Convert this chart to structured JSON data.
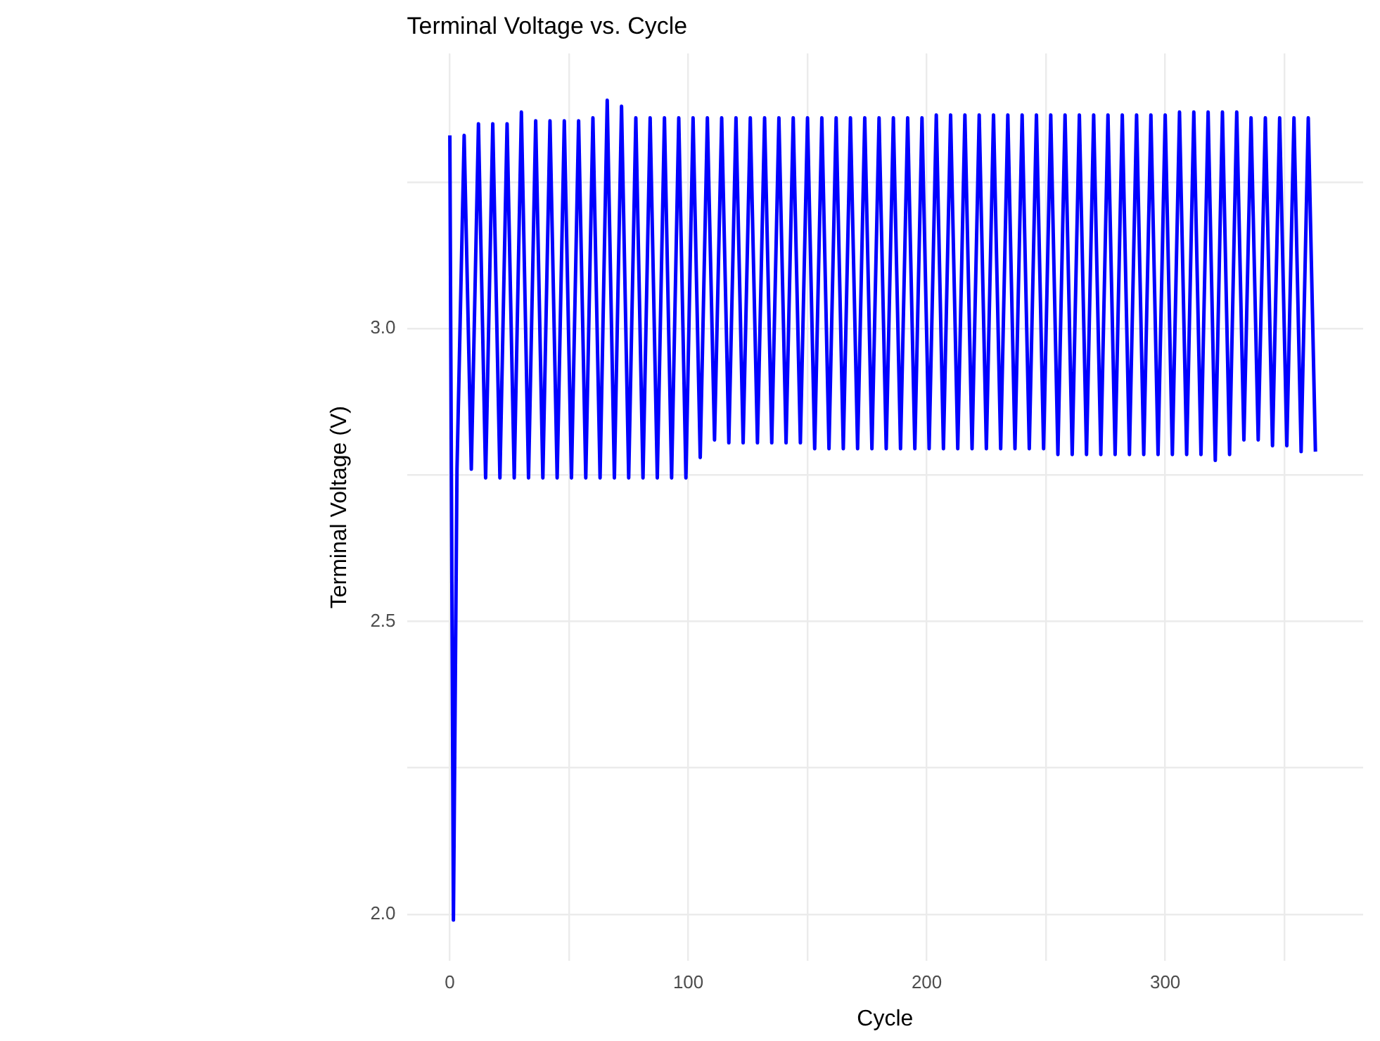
{
  "chart_data": {
    "type": "line",
    "title": "Terminal Voltage vs. Cycle",
    "xlabel": "Cycle",
    "ylabel": "Terminal Voltage (V)",
    "xlim": [
      -18,
      383
    ],
    "ylim": [
      1.92,
      3.47
    ],
    "xticks": [
      0,
      {
        "value": 50,
        "label": null
      },
      100,
      {
        "value": 150,
        "label": null
      },
      200,
      {
        "value": 250,
        "label": null
      },
      300,
      {
        "value": 350,
        "label": null
      }
    ],
    "yticks": [
      {
        "value": 2,
        "label": "2.0"
      },
      {
        "value": 2.25,
        "label": null
      },
      {
        "value": 2.5,
        "label": "2.5"
      },
      {
        "value": 2.75,
        "label": null
      },
      {
        "value": 3,
        "label": "3.0"
      },
      {
        "value": 3.25,
        "label": null
      }
    ],
    "grid": true,
    "legend": false,
    "marker": "none",
    "line_style": "solid",
    "series": [
      {
        "color": "#0000ff",
        "x": [
          0,
          1.5,
          3,
          6,
          9,
          12,
          15,
          18,
          21,
          24,
          27,
          30,
          33,
          36,
          39,
          42,
          45,
          48,
          51,
          54,
          57,
          60,
          63,
          66,
          69,
          72,
          75,
          78,
          81,
          84,
          87,
          90,
          93,
          96,
          99,
          102,
          105,
          108,
          111,
          114,
          117,
          120,
          123,
          126,
          129,
          132,
          135,
          138,
          141,
          144,
          147,
          150,
          153,
          156,
          159,
          162,
          165,
          168,
          171,
          174,
          177,
          180,
          183,
          186,
          189,
          192,
          195,
          198,
          201,
          204,
          207,
          210,
          213,
          216,
          219,
          222,
          225,
          228,
          231,
          234,
          237,
          240,
          243,
          246,
          249,
          252,
          255,
          258,
          261,
          264,
          267,
          270,
          273,
          276,
          279,
          282,
          285,
          288,
          291,
          294,
          297,
          300,
          303,
          306,
          309,
          312,
          315,
          318,
          321,
          324,
          327,
          330,
          333,
          336,
          339,
          342,
          345,
          348,
          351,
          354,
          357,
          360,
          363
        ],
        "values": [
          3.33,
          1.99,
          2.76,
          3.33,
          2.76,
          3.35,
          2.745,
          3.35,
          2.745,
          3.35,
          2.745,
          3.37,
          2.745,
          3.355,
          2.745,
          3.355,
          2.745,
          3.355,
          2.745,
          3.355,
          2.745,
          3.36,
          2.745,
          3.39,
          2.745,
          3.38,
          2.745,
          3.36,
          2.745,
          3.36,
          2.745,
          3.36,
          2.745,
          3.36,
          2.745,
          3.36,
          2.78,
          3.36,
          2.81,
          3.36,
          2.805,
          3.36,
          2.805,
          3.36,
          2.805,
          3.36,
          2.805,
          3.36,
          2.805,
          3.36,
          2.805,
          3.36,
          2.795,
          3.36,
          2.795,
          3.36,
          2.795,
          3.36,
          2.795,
          3.36,
          2.795,
          3.36,
          2.795,
          3.36,
          2.795,
          3.36,
          2.795,
          3.36,
          2.795,
          3.365,
          2.795,
          3.365,
          2.795,
          3.365,
          2.795,
          3.365,
          2.795,
          3.365,
          2.795,
          3.365,
          2.795,
          3.365,
          2.795,
          3.365,
          2.795,
          3.365,
          2.785,
          3.365,
          2.785,
          3.365,
          2.785,
          3.365,
          2.785,
          3.365,
          2.785,
          3.365,
          2.785,
          3.365,
          2.785,
          3.365,
          2.785,
          3.365,
          2.785,
          3.37,
          2.785,
          3.37,
          2.785,
          3.37,
          2.775,
          3.37,
          2.785,
          3.37,
          2.81,
          3.36,
          2.81,
          3.36,
          2.8,
          3.36,
          2.8,
          3.36,
          2.79,
          3.36,
          2.79
        ]
      }
    ]
  }
}
